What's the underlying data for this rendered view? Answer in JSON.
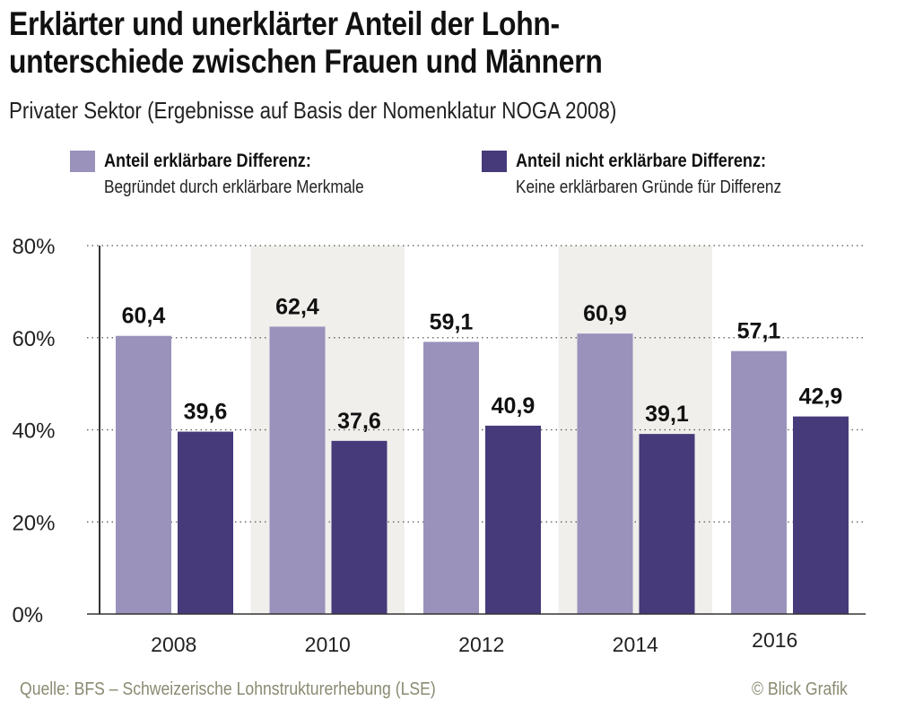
{
  "title_line1": "Erklärter und unerklärter Anteil der Lohn-",
  "title_line2": "unterschiede zwischen Frauen und Männern",
  "subtitle": "Privater Sektor (Ergebnisse auf Basis der Nomenklatur NOGA 2008)",
  "legend": [
    {
      "title": "Anteil erklärbare Differenz:",
      "sub": "Begründet durch erklärbare Merkmale",
      "color": "#9a92bb"
    },
    {
      "title": "Anteil nicht erklärbare Differenz:",
      "sub": "Keine erklärbaren Gründe für Differenz",
      "color": "#463a7a"
    }
  ],
  "footer": {
    "source": "Quelle: BFS – Schweizerische Lohnstrukturerhebung (LSE)",
    "credit": "© Blick Grafik"
  },
  "chart_data": {
    "type": "bar",
    "categories": [
      "2008",
      "2010",
      "2012",
      "2014",
      "2016"
    ],
    "series": [
      {
        "name": "Anteil erklärbare Differenz",
        "values": [
          60.4,
          62.4,
          59.1,
          60.9,
          57.1
        ],
        "labels": [
          "60,4",
          "62,4",
          "59,1",
          "60,9",
          "57,1"
        ],
        "color": "#9a92bb"
      },
      {
        "name": "Anteil nicht erklärbare Differenz",
        "values": [
          39.6,
          37.6,
          40.9,
          39.1,
          42.9
        ],
        "labels": [
          "39,6",
          "37,6",
          "40,9",
          "39,1",
          "42,9"
        ],
        "color": "#463a7a"
      }
    ],
    "ylim": [
      0,
      80
    ],
    "yticks": [
      0,
      20,
      40,
      60,
      80
    ],
    "ytick_labels": [
      "0%",
      "20%",
      "40%",
      "60%",
      "80%"
    ],
    "grid": "dotted horizontal",
    "band_color": "#f0efeb",
    "legend_position": "top"
  }
}
